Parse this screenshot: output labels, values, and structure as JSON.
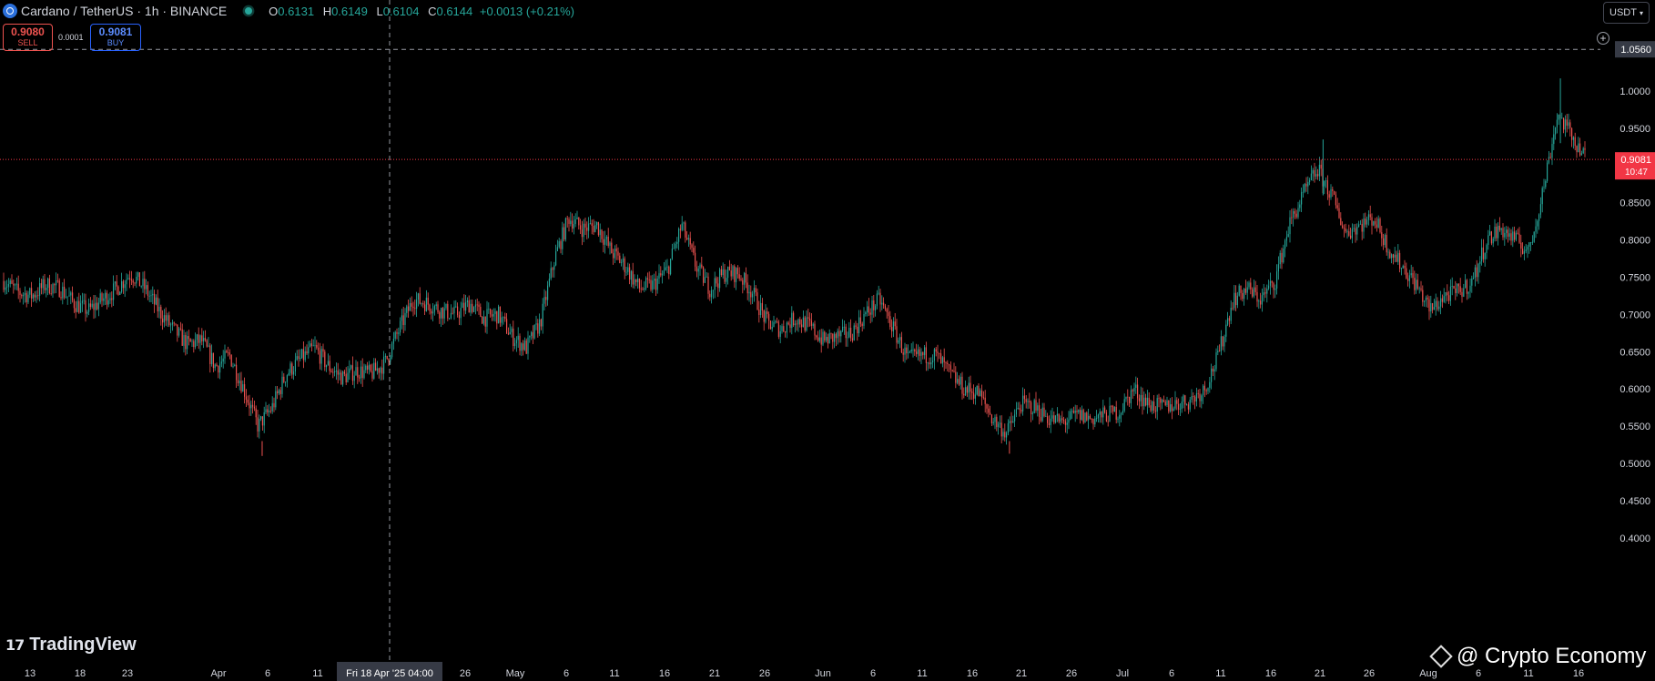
{
  "header": {
    "title": "Cardano / TetherUS · 1h · BINANCE",
    "ohlc": [
      {
        "k": "O",
        "v": "0.6131"
      },
      {
        "k": "H",
        "v": "0.6149"
      },
      {
        "k": "L",
        "v": "0.6104"
      },
      {
        "k": "C",
        "v": "0.6144"
      }
    ],
    "change": "+0.0013 (+0.21%)"
  },
  "trade": {
    "sell_price": "0.9080",
    "sell_label": "SELL",
    "spread": "0.0001",
    "buy_price": "0.9081",
    "buy_label": "BUY"
  },
  "unit_button": "USDT",
  "icons": [
    "cardano-coin-icon",
    "market-status-icon",
    "add-alert-icon",
    "chevron-down-icon",
    "tradingview-logo-icon",
    "binance-watermark-icon"
  ],
  "colors": {
    "up": "#26a69a",
    "down": "#ef5350",
    "price_tag": "#f23645",
    "buy": "#2962ff"
  },
  "brand": {
    "tradingview": "TradingView",
    "watermark": "@ Crypto Economy"
  },
  "chart_data": {
    "type": "candlestick",
    "timeframe": "1h",
    "ylim": [
      0.4,
      1.06
    ],
    "yticks": [
      "1.0000",
      "0.9500",
      "0.9000",
      "0.8500",
      "0.8000",
      "0.7500",
      "0.7000",
      "0.6500",
      "0.6000",
      "0.5500",
      "0.5000",
      "0.4500",
      "0.4000"
    ],
    "xticks": [
      "13",
      "18",
      "23",
      "Apr",
      "6",
      "11",
      "Fri 18 Apr '25   04:00",
      "26",
      "May",
      "6",
      "11",
      "16",
      "21",
      "26",
      "Jun",
      "6",
      "11",
      "16",
      "21",
      "26",
      "Jul",
      "6",
      "11",
      "16",
      "21",
      "26",
      "Aug",
      "6",
      "11",
      "16"
    ],
    "x_start_label": "13",
    "x_end_label": "16",
    "crosshair": {
      "date_label": "Fri 18 Apr '25   04:00",
      "price_label": "1.0560",
      "price": 1.056
    },
    "last_price": {
      "value": "0.9081",
      "countdown": "10:47",
      "price": 0.9081
    },
    "price_path": [
      [
        0,
        0.745
      ],
      [
        1,
        0.73
      ],
      [
        2,
        0.725
      ],
      [
        3,
        0.74
      ],
      [
        4,
        0.735
      ],
      [
        5,
        0.715
      ],
      [
        6,
        0.705
      ],
      [
        7,
        0.72
      ],
      [
        8,
        0.735
      ],
      [
        9,
        0.755
      ],
      [
        10,
        0.735
      ],
      [
        11,
        0.705
      ],
      [
        12,
        0.68
      ],
      [
        13,
        0.66
      ],
      [
        14,
        0.665
      ],
      [
        15,
        0.63
      ],
      [
        16,
        0.645
      ],
      [
        17,
        0.6
      ],
      [
        18,
        0.55
      ],
      [
        19,
        0.575
      ],
      [
        20,
        0.62
      ],
      [
        21,
        0.64
      ],
      [
        22,
        0.655
      ],
      [
        23,
        0.63
      ],
      [
        24,
        0.615
      ],
      [
        25,
        0.625
      ],
      [
        26,
        0.62
      ],
      [
        27,
        0.635
      ],
      [
        28,
        0.68
      ],
      [
        29,
        0.72
      ],
      [
        30,
        0.715
      ],
      [
        31,
        0.705
      ],
      [
        32,
        0.7
      ],
      [
        33,
        0.715
      ],
      [
        34,
        0.695
      ],
      [
        35,
        0.7
      ],
      [
        36,
        0.67
      ],
      [
        37,
        0.655
      ],
      [
        38,
        0.69
      ],
      [
        39,
        0.775
      ],
      [
        40,
        0.83
      ],
      [
        41,
        0.815
      ],
      [
        42,
        0.82
      ],
      [
        43,
        0.785
      ],
      [
        44,
        0.765
      ],
      [
        45,
        0.735
      ],
      [
        46,
        0.74
      ],
      [
        47,
        0.76
      ],
      [
        48,
        0.82
      ],
      [
        49,
        0.765
      ],
      [
        50,
        0.735
      ],
      [
        51,
        0.755
      ],
      [
        52,
        0.755
      ],
      [
        53,
        0.73
      ],
      [
        54,
        0.69
      ],
      [
        55,
        0.68
      ],
      [
        56,
        0.695
      ],
      [
        57,
        0.685
      ],
      [
        58,
        0.665
      ],
      [
        59,
        0.67
      ],
      [
        60,
        0.675
      ],
      [
        61,
        0.7
      ],
      [
        62,
        0.72
      ],
      [
        63,
        0.68
      ],
      [
        64,
        0.64
      ],
      [
        65,
        0.645
      ],
      [
        66,
        0.645
      ],
      [
        67,
        0.62
      ],
      [
        68,
        0.6
      ],
      [
        69,
        0.595
      ],
      [
        70,
        0.56
      ],
      [
        71,
        0.54
      ],
      [
        72,
        0.58
      ],
      [
        73,
        0.575
      ],
      [
        74,
        0.56
      ],
      [
        75,
        0.555
      ],
      [
        76,
        0.565
      ],
      [
        77,
        0.56
      ],
      [
        78,
        0.565
      ],
      [
        79,
        0.57
      ],
      [
        80,
        0.6
      ],
      [
        81,
        0.58
      ],
      [
        82,
        0.575
      ],
      [
        83,
        0.58
      ],
      [
        84,
        0.585
      ],
      [
        85,
        0.6
      ],
      [
        86,
        0.645
      ],
      [
        87,
        0.72
      ],
      [
        88,
        0.735
      ],
      [
        89,
        0.72
      ],
      [
        90,
        0.745
      ],
      [
        91,
        0.82
      ],
      [
        92,
        0.86
      ],
      [
        93,
        0.895
      ],
      [
        94,
        0.86
      ],
      [
        95,
        0.81
      ],
      [
        96,
        0.82
      ],
      [
        97,
        0.83
      ],
      [
        98,
        0.79
      ],
      [
        99,
        0.765
      ],
      [
        100,
        0.74
      ],
      [
        101,
        0.705
      ],
      [
        102,
        0.725
      ],
      [
        103,
        0.73
      ],
      [
        104,
        0.745
      ],
      [
        105,
        0.8
      ],
      [
        106,
        0.815
      ],
      [
        107,
        0.8
      ],
      [
        108,
        0.785
      ],
      [
        109,
        0.87
      ],
      [
        110,
        0.97
      ],
      [
        111,
        0.94
      ],
      [
        112,
        0.91
      ]
    ],
    "grid": false,
    "legend": "none"
  }
}
